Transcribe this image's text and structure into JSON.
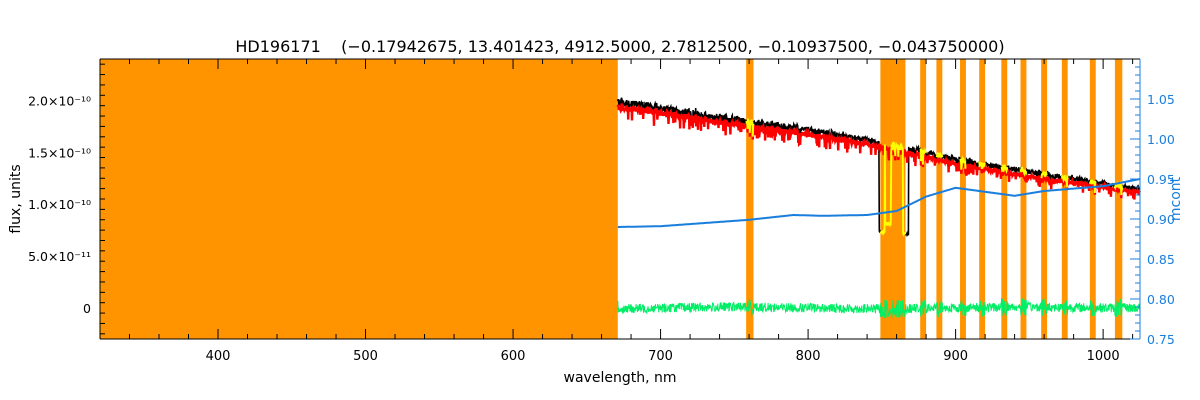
{
  "chart_data": {
    "type": "line",
    "title": "HD196171    (−0.17942675, 13.401423, 4912.5000, 2.7812500, −0.10937500, −0.043750000)",
    "xlabel": "wavelength, nm",
    "ylabel": "flux, units",
    "y2label": "mcont",
    "xlim": [
      320,
      1025
    ],
    "ylim": [
      -3e-11,
      2.4e-10
    ],
    "y2lim": [
      0.75,
      1.1
    ],
    "x_ticks": [
      400,
      500,
      600,
      700,
      800,
      900,
      1000
    ],
    "y_ticks": [
      {
        "value": 0,
        "label": "0"
      },
      {
        "value": 5e-11,
        "label": "5.0×10⁻¹¹"
      },
      {
        "value": 1e-10,
        "label": "1.0×10⁻¹⁰"
      },
      {
        "value": 1.5e-10,
        "label": "1.5×10⁻¹⁰"
      },
      {
        "value": 2e-10,
        "label": "2.0×10⁻¹⁰"
      }
    ],
    "y2_ticks": [
      0.75,
      0.8,
      0.85,
      0.9,
      0.95,
      1.0,
      1.05
    ],
    "masked_regions": [
      [
        320,
        671
      ],
      [
        758,
        763
      ],
      [
        849,
        866
      ],
      [
        876,
        880
      ],
      [
        887,
        891
      ],
      [
        903,
        907
      ],
      [
        916,
        920
      ],
      [
        931,
        935
      ],
      [
        944,
        948
      ],
      [
        958,
        962
      ],
      [
        972,
        976
      ],
      [
        991,
        995
      ],
      [
        1008,
        1013
      ]
    ],
    "series": [
      {
        "name": "observed flux",
        "color": "#000000",
        "x": [
          671,
          700,
          750,
          800,
          850,
          900,
          950,
          1000,
          1025
        ],
        "y": [
          2.04e-10,
          1.97e-10,
          1.86e-10,
          1.76e-10,
          1.63e-10,
          1.47e-10,
          1.34e-10,
          1.23e-10,
          1.18e-10
        ]
      },
      {
        "name": "model flux",
        "color": "#ff0000",
        "x": [
          671,
          700,
          750,
          800,
          850,
          900,
          950,
          1000,
          1025
        ],
        "y": [
          1.98e-10,
          1.92e-10,
          1.81e-10,
          1.71e-10,
          1.58e-10,
          1.42e-10,
          1.29e-10,
          1.19e-10,
          1.14e-10
        ]
      },
      {
        "name": "residuals",
        "color": "#00ee66",
        "x": [
          671,
          700,
          750,
          800,
          850,
          900,
          950,
          1000,
          1025
        ],
        "y": [
          -1e-12,
          0,
          1e-12,
          0,
          -1e-12,
          0,
          1e-12,
          0,
          0
        ]
      },
      {
        "name": "mcont",
        "axis": "right",
        "color": "#1a7fdc",
        "x": [
          671,
          700,
          730,
          760,
          790,
          810,
          840,
          860,
          880,
          900,
          920,
          940,
          960,
          980,
          1000,
          1025
        ],
        "y": [
          0.89,
          0.891,
          0.895,
          0.899,
          0.905,
          0.904,
          0.905,
          0.91,
          0.928,
          0.939,
          0.934,
          0.929,
          0.935,
          0.938,
          0.941,
          0.95
        ]
      }
    ],
    "colors": {
      "mask": "#ff9400",
      "masked_flux": "#ffff00",
      "right_axis": "#1a7fdc"
    }
  }
}
